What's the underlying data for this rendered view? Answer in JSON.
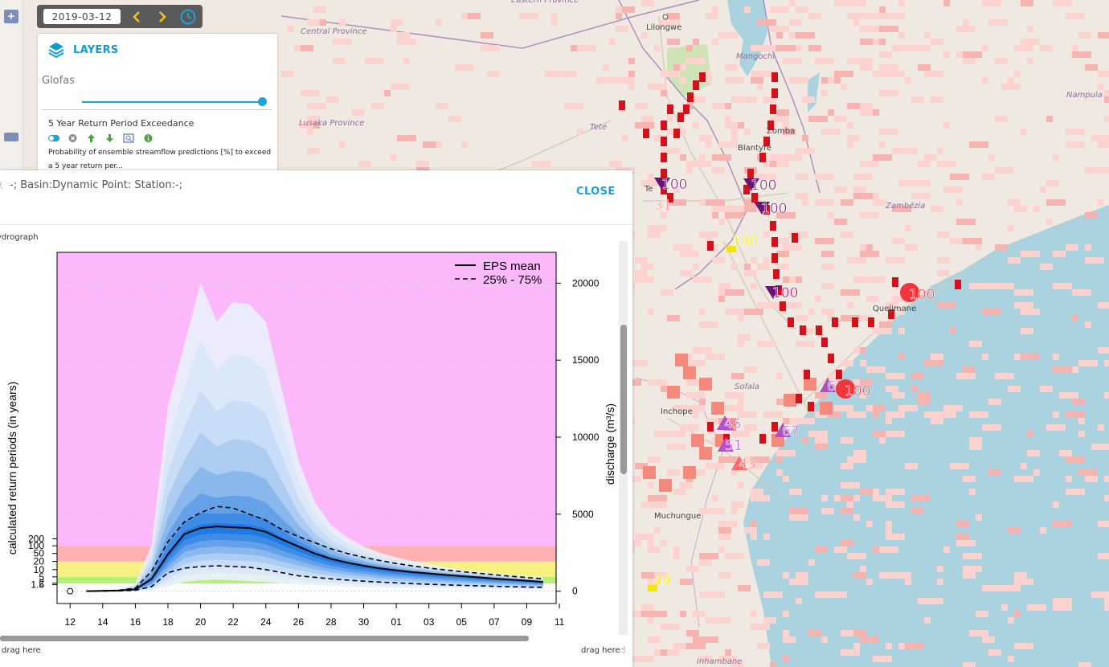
{
  "toolbar": {
    "date": "2019-03-12",
    "prev_icon": "chevron-left-icon",
    "next_icon": "chevron-right-icon",
    "clock_icon": "clock-icon",
    "zoom_in_label": "+"
  },
  "layers_panel": {
    "title": "LAYERS",
    "group": "Glofas",
    "opacity_percent": 100,
    "layer": {
      "name": "5 Year Return Period Exceedance",
      "description": "Probability of ensemble streamflow predictions [%] to exceed a 5 year return per...",
      "controls": [
        "toggle-icon",
        "remove-icon",
        "move-up-icon",
        "move-down-icon",
        "zoom-extent-icon",
        "info-icon"
      ]
    }
  },
  "popup": {
    "title": "-; Basin:Dynamic Point: Station:-;",
    "close_label": "CLOSE",
    "drag_left": "drag here",
    "drag_right": "drag here",
    "subtitle_fragment": "ydrograph"
  },
  "map": {
    "places": [
      {
        "name": "Eastern Province",
        "italic": true
      },
      {
        "name": "Central Province",
        "italic": true
      },
      {
        "name": "Lilongwe",
        "italic": false
      },
      {
        "name": "Mangochi",
        "italic": true
      },
      {
        "name": "Lusaka Province",
        "italic": true
      },
      {
        "name": "Tete",
        "italic": true
      },
      {
        "name": "Zomba",
        "italic": false
      },
      {
        "name": "Blantyre",
        "italic": false
      },
      {
        "name": "Nampula",
        "italic": true
      },
      {
        "name": "Zambézia",
        "italic": true
      },
      {
        "name": "Te",
        "italic": false
      },
      {
        "name": "Quelimane",
        "italic": false
      },
      {
        "name": "Sofala",
        "italic": true
      },
      {
        "name": "Inchope",
        "italic": false
      },
      {
        "name": "Muchungue",
        "italic": false
      },
      {
        "name": "Inhambane",
        "italic": true
      }
    ],
    "markers": [
      {
        "label": "100",
        "kind": "triangle-down",
        "color": "#6a1570"
      },
      {
        "label": "31",
        "kind": "text",
        "color": "#ff8c8c"
      },
      {
        "label": "100",
        "kind": "triangle-down",
        "color": "#6a1570"
      },
      {
        "label": "100",
        "kind": "triangle-down",
        "color": "#6a1570"
      },
      {
        "label": "100",
        "kind": "square",
        "color": "#f2e500"
      },
      {
        "label": "100",
        "kind": "triangle-down",
        "color": "#6a1570"
      },
      {
        "label": "100",
        "kind": "circle",
        "color": "#f2353c"
      },
      {
        "label": "62",
        "kind": "triangle-up",
        "color": "#b44fc8"
      },
      {
        "label": "100",
        "kind": "circle",
        "color": "#f2353c"
      },
      {
        "label": "45",
        "kind": "triangle-up",
        "color": "#b44fc8"
      },
      {
        "label": "51",
        "kind": "triangle-up",
        "color": "#b44fc8"
      },
      {
        "label": "67",
        "kind": "triangle-up",
        "color": "#b44fc8"
      },
      {
        "label": "43",
        "kind": "triangle-up",
        "color": "#ff6b6b"
      },
      {
        "label": "49",
        "kind": "square",
        "color": "#f2e500"
      }
    ]
  },
  "chart_data": {
    "type": "area",
    "x_tick_labels": [
      "12",
      "14",
      "16",
      "18",
      "20",
      "22",
      "24",
      "26",
      "28",
      "30",
      "01",
      "03",
      "05",
      "07",
      "09",
      "11"
    ],
    "left_axis": {
      "label": "calculated return periods (in years)",
      "ticks": [
        "1.5",
        "2",
        "5",
        "10",
        "20",
        "50",
        "100",
        "200"
      ]
    },
    "right_axis": {
      "label": "discharge (m³/s)",
      "ticks": [
        0,
        5000,
        10000,
        15000,
        20000
      ],
      "ylim": [
        0,
        22000
      ]
    },
    "legend": [
      "EPS mean",
      "25% - 75%"
    ],
    "legend_position": "top-right",
    "return_period_bands": [
      {
        "from": 500,
        "to": 930,
        "color": "#b4f07a"
      },
      {
        "from": 930,
        "to": 1930,
        "color": "#f5f080"
      },
      {
        "from": 1930,
        "to": 2950,
        "color": "#ffb0b0"
      },
      {
        "from": 2950,
        "to": 22000,
        "color": "#fbb9fb"
      }
    ],
    "series": [
      {
        "name": "EPS mean",
        "style": "solid",
        "x": [
          13,
          14,
          15,
          16,
          17,
          18,
          19,
          20,
          21,
          22,
          23,
          24,
          25,
          26,
          27,
          28,
          29,
          30,
          31,
          32,
          33,
          34,
          35,
          36,
          37,
          38,
          39,
          40,
          41
        ],
        "values": [
          0,
          20,
          40,
          120,
          800,
          2400,
          3700,
          4100,
          4200,
          4150,
          4100,
          3850,
          3350,
          2900,
          2450,
          2100,
          1850,
          1650,
          1480,
          1350,
          1240,
          1150,
          1060,
          980,
          900,
          820,
          750,
          680,
          600
        ]
      },
      {
        "name": "25%",
        "style": "dashed",
        "x": [
          13,
          14,
          15,
          16,
          17,
          18,
          19,
          20,
          21,
          22,
          23,
          24,
          25,
          26,
          27,
          28,
          29,
          30,
          31,
          32,
          33,
          34,
          35,
          36,
          37,
          38,
          39,
          40,
          41
        ],
        "values": [
          0,
          10,
          20,
          60,
          300,
          1200,
          1500,
          1600,
          1650,
          1600,
          1550,
          1400,
          1200,
          1000,
          900,
          800,
          720,
          650,
          590,
          540,
          490,
          450,
          410,
          380,
          350,
          320,
          290,
          270,
          250
        ]
      },
      {
        "name": "75%",
        "style": "dashed",
        "x": [
          13,
          14,
          15,
          16,
          17,
          18,
          19,
          20,
          21,
          22,
          23,
          24,
          25,
          26,
          27,
          28,
          29,
          30,
          31,
          32,
          33,
          34,
          35,
          36,
          37,
          38,
          39,
          40,
          41
        ],
        "values": [
          0,
          30,
          60,
          200,
          1300,
          3200,
          4500,
          5100,
          5500,
          5400,
          5000,
          4600,
          4000,
          3550,
          3150,
          2750,
          2450,
          2200,
          1990,
          1800,
          1640,
          1500,
          1380,
          1270,
          1170,
          1070,
          970,
          890,
          800
        ]
      },
      {
        "name": "ensemble max",
        "style": "fill",
        "x": [
          13,
          14,
          15,
          16,
          17,
          18,
          19,
          20,
          21,
          22,
          23,
          24,
          25,
          26,
          27,
          28,
          29,
          30,
          31,
          32,
          33,
          34,
          35,
          36,
          37,
          38,
          39,
          40,
          41
        ],
        "values": [
          0,
          50,
          120,
          500,
          3000,
          12000,
          16000,
          20000,
          17500,
          18800,
          18600,
          17500,
          13000,
          8500,
          5800,
          4300,
          3500,
          2900,
          2500,
          2200,
          1950,
          1750,
          1580,
          1420,
          1290,
          1170,
          1070,
          980,
          900
        ]
      },
      {
        "name": "ensemble min",
        "style": "fill",
        "x": [
          13,
          14,
          15,
          16,
          17,
          18,
          19,
          20,
          21,
          22,
          23,
          24,
          25,
          26,
          27,
          28,
          29,
          30,
          31,
          32,
          33,
          34,
          35,
          36,
          37,
          38,
          39,
          40,
          41
        ],
        "values": [
          0,
          0,
          0,
          0,
          20,
          300,
          600,
          700,
          750,
          700,
          650,
          600,
          500,
          430,
          380,
          340,
          300,
          270,
          240,
          220,
          200,
          180,
          165,
          150,
          140,
          130,
          120,
          110,
          100
        ]
      }
    ],
    "observed_point": {
      "x": 12,
      "value": 0
    }
  }
}
